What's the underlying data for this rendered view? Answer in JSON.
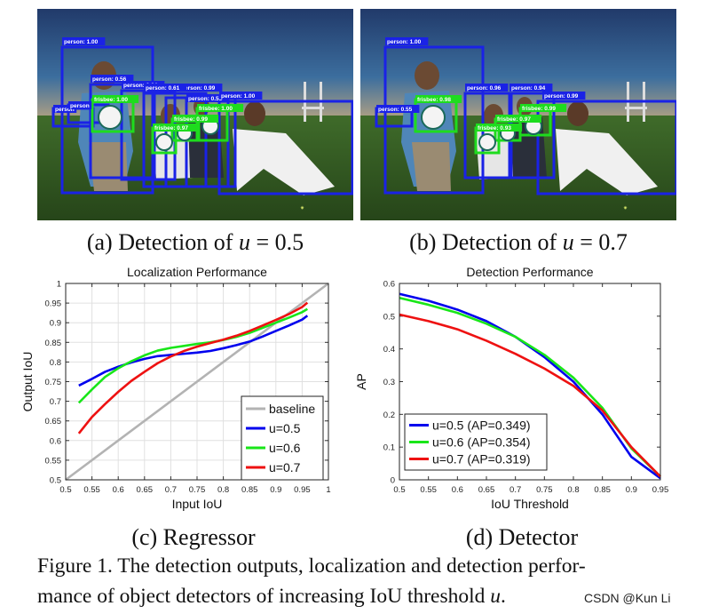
{
  "subfigures": {
    "a": {
      "caption_prefix": "(a) Detection of ",
      "caption_var": "u",
      "caption_suffix": " = 0.5",
      "detections": [
        {
          "label": "person: 1.00",
          "cls": "person"
        },
        {
          "label": "person: 0.56",
          "cls": "person"
        },
        {
          "label": "person: 0.64",
          "cls": "person"
        },
        {
          "label": "person: 0.99",
          "cls": "person"
        },
        {
          "label": "person: 0.53",
          "cls": "person"
        },
        {
          "label": "person: 1.00",
          "cls": "person"
        },
        {
          "label": "person",
          "cls": "person"
        },
        {
          "label": "person: 0.61",
          "cls": "person"
        },
        {
          "label": "person",
          "cls": "person"
        },
        {
          "label": "frisbee: 1.00",
          "cls": "frisbee"
        },
        {
          "label": "frisbee: 0.99",
          "cls": "frisbee"
        },
        {
          "label": "frisbee: 1.00",
          "cls": "frisbee"
        },
        {
          "label": "frisbee: 0.97",
          "cls": "frisbee"
        }
      ]
    },
    "b": {
      "caption_prefix": "(b) Detection of ",
      "caption_var": "u",
      "caption_suffix": " = 0.7",
      "detections": [
        {
          "label": "person: 1.00",
          "cls": "person"
        },
        {
          "label": "person: 0.96",
          "cls": "person"
        },
        {
          "label": "person: 0.94",
          "cls": "person"
        },
        {
          "label": "person: 0.99",
          "cls": "person"
        },
        {
          "label": "person: 0.55",
          "cls": "person"
        },
        {
          "label": "frisbee: 0.98",
          "cls": "frisbee"
        },
        {
          "label": "frisbee: 0.99",
          "cls": "frisbee"
        },
        {
          "label": "frisbee: 0.97",
          "cls": "frisbee"
        },
        {
          "label": "frisbee: 0.93",
          "cls": "frisbee"
        }
      ]
    },
    "c": {
      "caption": "(c) Regressor"
    },
    "d": {
      "caption": "(d) Detector"
    }
  },
  "figure_caption": {
    "line1": "Figure 1. The detection outputs, localization and detection perfor-",
    "line2": "mance of object detectors of increasing IoU threshold ",
    "line2_var": "u",
    "line2_end": "."
  },
  "watermark": "CSDN @Kun Li",
  "colors": {
    "person_box": "#1a22e6",
    "frisbee_box": "#1edc1e",
    "baseline": "#b3b3b3",
    "u05": "#0000ee",
    "u06": "#19e619",
    "u07": "#ee1111"
  },
  "chart_data": [
    {
      "type": "line",
      "title": "Localization Performance",
      "xlabel": "Input IoU",
      "ylabel": "Output IoU",
      "xlim": [
        0.5,
        1.0
      ],
      "ylim": [
        0.5,
        1.0
      ],
      "xticks": [
        "0.5",
        "0.55",
        "0.6",
        "0.65",
        "0.7",
        "0.75",
        "0.8",
        "0.85",
        "0.9",
        "0.95",
        "1"
      ],
      "yticks": [
        "0.5",
        "0.55",
        "0.6",
        "0.65",
        "0.7",
        "0.75",
        "0.8",
        "0.85",
        "0.9",
        "0.95",
        "1"
      ],
      "grid": true,
      "legend_position": "bottom-right",
      "series": [
        {
          "name": "baseline",
          "color": "#b3b3b3",
          "x": [
            0.5,
            1.0
          ],
          "y": [
            0.5,
            1.0
          ]
        },
        {
          "name": "u=0.5",
          "color": "#0000ee",
          "x": [
            0.525,
            0.55,
            0.575,
            0.6,
            0.625,
            0.65,
            0.675,
            0.7,
            0.725,
            0.75,
            0.775,
            0.8,
            0.825,
            0.85,
            0.875,
            0.9,
            0.925,
            0.95,
            0.96
          ],
          "y": [
            0.74,
            0.757,
            0.775,
            0.788,
            0.799,
            0.808,
            0.815,
            0.818,
            0.821,
            0.824,
            0.828,
            0.835,
            0.843,
            0.852,
            0.865,
            0.879,
            0.893,
            0.908,
            0.918
          ]
        },
        {
          "name": "u=0.6",
          "color": "#19e619",
          "x": [
            0.525,
            0.55,
            0.575,
            0.6,
            0.625,
            0.65,
            0.675,
            0.7,
            0.725,
            0.75,
            0.775,
            0.8,
            0.825,
            0.85,
            0.875,
            0.9,
            0.925,
            0.95,
            0.96
          ],
          "y": [
            0.696,
            0.73,
            0.762,
            0.784,
            0.802,
            0.817,
            0.829,
            0.836,
            0.841,
            0.846,
            0.85,
            0.856,
            0.864,
            0.874,
            0.887,
            0.9,
            0.913,
            0.927,
            0.935
          ]
        },
        {
          "name": "u=0.7",
          "color": "#ee1111",
          "x": [
            0.525,
            0.55,
            0.575,
            0.6,
            0.625,
            0.65,
            0.675,
            0.7,
            0.725,
            0.75,
            0.775,
            0.8,
            0.825,
            0.85,
            0.875,
            0.9,
            0.925,
            0.95,
            0.96
          ],
          "y": [
            0.618,
            0.66,
            0.693,
            0.724,
            0.752,
            0.775,
            0.797,
            0.814,
            0.828,
            0.839,
            0.848,
            0.857,
            0.867,
            0.879,
            0.893,
            0.907,
            0.922,
            0.94,
            0.951
          ]
        }
      ]
    },
    {
      "type": "line",
      "title": "Detection Performance",
      "xlabel": "IoU Threshold",
      "ylabel": "AP",
      "xlim": [
        0.5,
        0.95
      ],
      "ylim": [
        0,
        0.6
      ],
      "xticks": [
        "0.5",
        "0.55",
        "0.6",
        "0.65",
        "0.7",
        "0.75",
        "0.8",
        "0.85",
        "0.9",
        "0.95"
      ],
      "yticks": [
        "0",
        "0.1",
        "0.2",
        "0.3",
        "0.4",
        "0.5",
        "0.6"
      ],
      "grid": false,
      "legend_position": "bottom-left",
      "series": [
        {
          "name": "u=0.5 (AP=0.349)",
          "color": "#0000ee",
          "x": [
            0.5,
            0.55,
            0.6,
            0.65,
            0.7,
            0.75,
            0.8,
            0.85,
            0.9,
            0.95
          ],
          "y": [
            0.568,
            0.547,
            0.52,
            0.485,
            0.437,
            0.375,
            0.3,
            0.2,
            0.07,
            0.005
          ]
        },
        {
          "name": "u=0.6 (AP=0.354)",
          "color": "#19e619",
          "x": [
            0.5,
            0.55,
            0.6,
            0.65,
            0.7,
            0.75,
            0.8,
            0.85,
            0.9,
            0.95
          ],
          "y": [
            0.556,
            0.535,
            0.51,
            0.477,
            0.437,
            0.382,
            0.312,
            0.22,
            0.096,
            0.01
          ]
        },
        {
          "name": "u=0.7 (AP=0.319)",
          "color": "#ee1111",
          "x": [
            0.5,
            0.55,
            0.6,
            0.65,
            0.7,
            0.75,
            0.8,
            0.85,
            0.9,
            0.95
          ],
          "y": [
            0.505,
            0.485,
            0.46,
            0.425,
            0.385,
            0.34,
            0.287,
            0.212,
            0.1,
            0.01
          ]
        }
      ]
    }
  ]
}
